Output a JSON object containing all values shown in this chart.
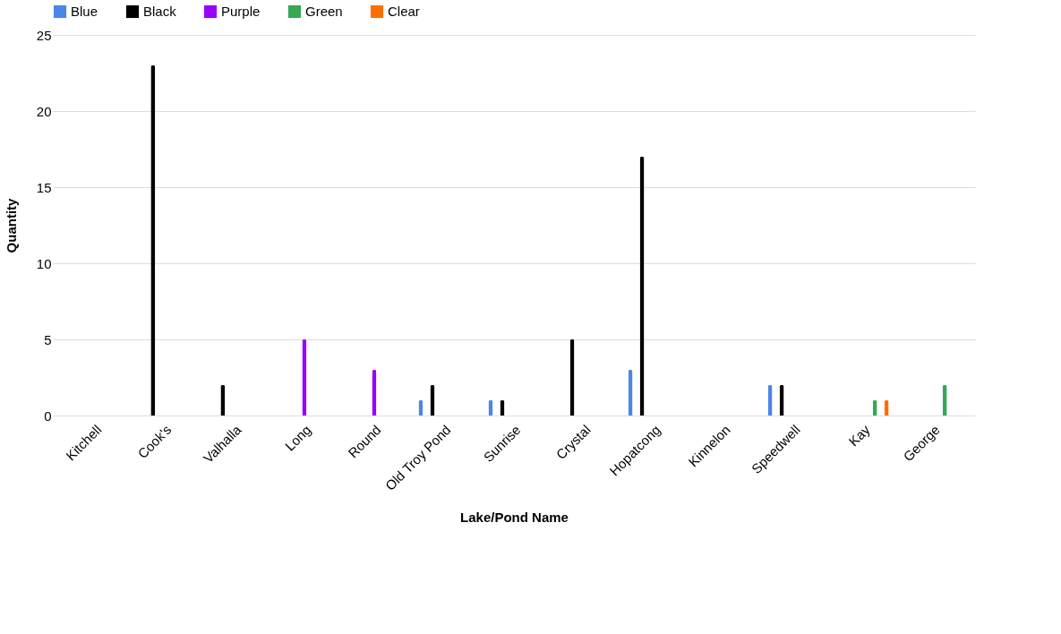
{
  "chart_data": {
    "type": "bar",
    "xlabel": "Lake/Pond Name",
    "ylabel": "Quantity",
    "categories": [
      "Kitchell",
      "Cook's",
      "Valhalla",
      "Long",
      "Round",
      "Old Troy Pond",
      "Sunrise",
      "Crystal",
      "Hopatcong",
      "Kinnelon",
      "Speedwell",
      "Kay",
      "George"
    ],
    "series": [
      {
        "name": "Blue",
        "color": "#4a86e8",
        "values": [
          null,
          null,
          null,
          null,
          null,
          1,
          1,
          null,
          3,
          null,
          2,
          null,
          null
        ]
      },
      {
        "name": "Black",
        "color": "#000000",
        "values": [
          null,
          23,
          2,
          null,
          null,
          2,
          1,
          5,
          17,
          null,
          2,
          null,
          null
        ]
      },
      {
        "name": "Purple",
        "color": "#9900ff",
        "values": [
          null,
          null,
          null,
          5,
          3,
          null,
          null,
          null,
          null,
          null,
          null,
          null,
          null
        ]
      },
      {
        "name": "Green",
        "color": "#34a853",
        "values": [
          null,
          null,
          null,
          null,
          null,
          null,
          null,
          null,
          null,
          null,
          null,
          1,
          2
        ]
      },
      {
        "name": "Clear",
        "color": "#ff6d01",
        "values": [
          null,
          null,
          null,
          null,
          null,
          null,
          null,
          null,
          null,
          null,
          null,
          1,
          null
        ]
      }
    ],
    "ylim": [
      0,
      25
    ],
    "yticks": [
      0,
      5,
      10,
      15,
      20,
      25
    ],
    "grid": "y",
    "legend": "top"
  }
}
